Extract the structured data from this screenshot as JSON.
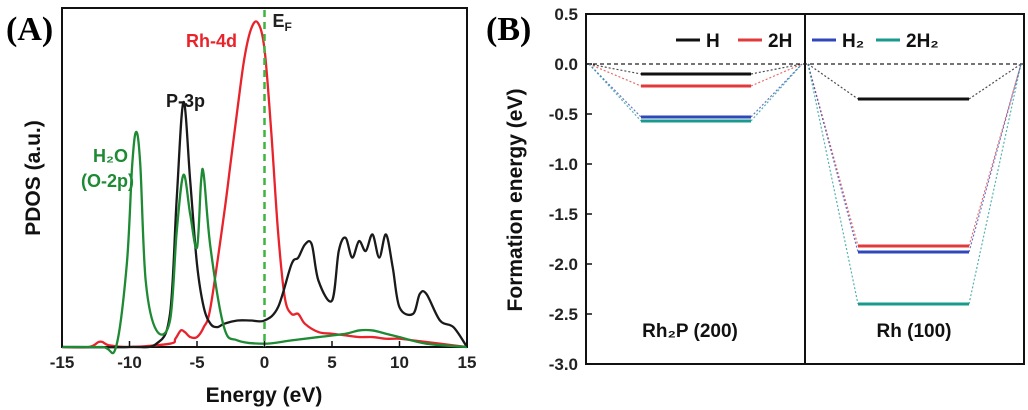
{
  "panels": {
    "a_label": "(A)",
    "b_label": "(B)"
  },
  "chart_data": [
    {
      "type": "line",
      "panel": "A",
      "title": "",
      "xlabel": "Energy (eV)",
      "ylabel": "PDOS (a.u.)",
      "xlim": [
        -15,
        15
      ],
      "ylim": [
        0,
        1.0
      ],
      "xticks": [
        -15,
        -10,
        -5,
        0,
        5,
        10,
        15
      ],
      "fermi_level": {
        "x": 0,
        "label_main": "E",
        "label_sub": "F",
        "color": "#3fb43f"
      },
      "series": [
        {
          "name": "Rh-4d",
          "color": "#e8232b",
          "x": [
            -15,
            -13,
            -12.3,
            -12,
            -11.5,
            -10,
            -7,
            -6.6,
            -6.2,
            -5.9,
            -5.5,
            -5,
            -4.5,
            -4,
            -3,
            -2.5,
            -2,
            -1.5,
            -1,
            -0.5,
            0,
            0.5,
            1,
            1.5,
            2,
            2.5,
            3,
            4,
            5,
            6,
            7,
            8,
            9,
            10,
            11,
            12,
            13,
            15
          ],
          "y": [
            0,
            0,
            0.015,
            0.015,
            0.005,
            0,
            0.01,
            0.025,
            0.05,
            0.045,
            0.03,
            0.03,
            0.06,
            0.12,
            0.4,
            0.56,
            0.72,
            0.87,
            0.96,
            0.98,
            0.9,
            0.65,
            0.35,
            0.15,
            0.1,
            0.1,
            0.07,
            0.045,
            0.04,
            0.035,
            0.03,
            0.03,
            0.025,
            0.025,
            0.02,
            0.015,
            0.01,
            0
          ]
        },
        {
          "name": "P-3p",
          "color": "#1a1a1a",
          "x": [
            -15,
            -10,
            -8,
            -7,
            -6.5,
            -6,
            -5.5,
            -5,
            -4.5,
            -4,
            -3.5,
            -3,
            -2,
            -1,
            0,
            1,
            2,
            2.5,
            3,
            3.5,
            4,
            5,
            5.5,
            6,
            6.5,
            7,
            7.5,
            8,
            8.5,
            9,
            9.5,
            10,
            11,
            11.5,
            12,
            13,
            14,
            15
          ],
          "y": [
            0,
            0,
            0.01,
            0.1,
            0.45,
            0.74,
            0.5,
            0.25,
            0.12,
            0.07,
            0.06,
            0.07,
            0.08,
            0.08,
            0.08,
            0.12,
            0.25,
            0.27,
            0.31,
            0.31,
            0.2,
            0.14,
            0.29,
            0.33,
            0.27,
            0.32,
            0.29,
            0.34,
            0.27,
            0.34,
            0.24,
            0.12,
            0.1,
            0.16,
            0.16,
            0.08,
            0.06,
            0
          ]
        },
        {
          "name": "H2O (O-2p)",
          "color": "#1e8a33",
          "x": [
            -15,
            -12,
            -11,
            -10.2,
            -9.8,
            -9.5,
            -9.2,
            -8.8,
            -8,
            -7,
            -6.5,
            -6,
            -5.5,
            -5,
            -4.7,
            -4.5,
            -4,
            -3,
            -2,
            0,
            2,
            4,
            6,
            7,
            8,
            9,
            10,
            12,
            15
          ],
          "y": [
            0,
            0,
            0,
            0.25,
            0.55,
            0.65,
            0.55,
            0.2,
            0.05,
            0.08,
            0.35,
            0.52,
            0.4,
            0.3,
            0.5,
            0.52,
            0.3,
            0.06,
            0.02,
            0.01,
            0.02,
            0.03,
            0.04,
            0.05,
            0.05,
            0.04,
            0.03,
            0.01,
            0
          ]
        }
      ],
      "annotations": [
        {
          "lines": [
            "Rh-4d"
          ],
          "color": "#e8232b"
        },
        {
          "lines": [
            "P-3p"
          ],
          "color": "#1a1a1a"
        },
        {
          "lines": [
            "H₂O",
            "(O-2p)"
          ],
          "color": "#1e8a33"
        }
      ]
    },
    {
      "type": "bar",
      "panel": "B",
      "subtype": "energy-level diagram",
      "xlabel": "",
      "ylabel": "Formation  energy  (eV)",
      "ylim": [
        -3.0,
        0.5
      ],
      "yticks": [
        "0.5",
        "0.0",
        "-0.5",
        "-1.0",
        "-1.5",
        "-2.0",
        "-2.5",
        "-3.0"
      ],
      "reference": 0.0,
      "categories": [
        "Rh₂P (200)",
        "Rh (100)"
      ],
      "series": [
        {
          "name": "H",
          "color": "#111111",
          "values": [
            -0.1,
            -0.35
          ]
        },
        {
          "name": "2H",
          "color": "#e23a3a",
          "values": [
            -0.22,
            -1.82
          ]
        },
        {
          "name": "H₂",
          "color": "#2f47b8",
          "values": [
            -0.53,
            -1.88
          ]
        },
        {
          "name": "2H₂",
          "color": "#1a9a8e",
          "values": [
            -0.57,
            -2.4
          ]
        }
      ]
    }
  ]
}
